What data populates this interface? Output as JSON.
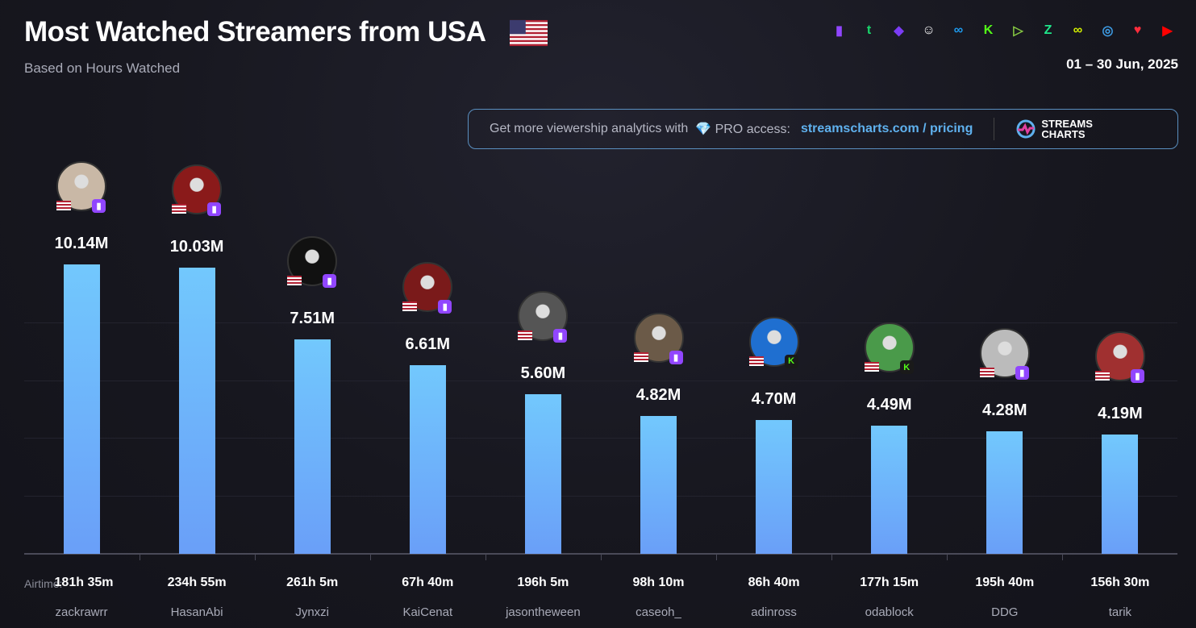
{
  "header": {
    "title": "Most Watched Streamers from USA",
    "subtitle": "Based on Hours Watched",
    "date_range": "01 – 30 Jun, 2025"
  },
  "platforms": [
    {
      "name": "twitch-icon",
      "color": "#9146ff",
      "glyph": "▮"
    },
    {
      "name": "trovo-icon",
      "color": "#19d66b",
      "glyph": "t"
    },
    {
      "name": "vk-play-icon",
      "color": "#7b3cf5",
      "glyph": "◆"
    },
    {
      "name": "bigo-icon",
      "color": "#ffffff",
      "glyph": "☺"
    },
    {
      "name": "infinity-icon",
      "color": "#1e9bf0",
      "glyph": "∞"
    },
    {
      "name": "kick-icon",
      "color": "#53fc18",
      "glyph": "K"
    },
    {
      "name": "rumble-icon",
      "color": "#85c742",
      "glyph": "▷"
    },
    {
      "name": "zhanqi-icon",
      "color": "#1fe58a",
      "glyph": "Z"
    },
    {
      "name": "loop-icon",
      "color": "#d4f000",
      "glyph": "∞"
    },
    {
      "name": "steam-icon",
      "color": "#3d9be3",
      "glyph": "◎"
    },
    {
      "name": "heart-icon",
      "color": "#ff2d3c",
      "glyph": "♥"
    },
    {
      "name": "youtube-icon",
      "color": "#ff0000",
      "glyph": "▶"
    }
  ],
  "promo": {
    "text": "Get more viewership analytics with",
    "pro": "💎 PRO access:",
    "link": "streamscharts.com / pricing",
    "logo_line1": "STREAMS",
    "logo_line2": "CHARTS"
  },
  "airtime_label": "Airtime:",
  "colors": {
    "bar_top": "#72c8fd",
    "bar_bottom": "#6a9ff8",
    "twitch": "#9146ff",
    "kick": "#53fc18"
  },
  "chart_data": {
    "type": "bar",
    "title": "Most Watched Streamers from USA",
    "ylabel": "Hours Watched",
    "ylim": [
      0,
      10.5
    ],
    "categories": [
      "zackrawrr",
      "HasanAbi",
      "Jynxzi",
      "KaiCenat",
      "jasontheween",
      "caseoh_",
      "adinross",
      "odablock",
      "DDG",
      "tarik"
    ],
    "values": [
      10.14,
      10.03,
      7.51,
      6.61,
      5.6,
      4.82,
      4.7,
      4.49,
      4.28,
      4.19
    ],
    "value_labels": [
      "10.14M",
      "10.03M",
      "7.51M",
      "6.61M",
      "5.60M",
      "4.82M",
      "4.70M",
      "4.49M",
      "4.28M",
      "4.19M"
    ],
    "airtime": [
      "181h 35m",
      "234h 55m",
      "261h 5m",
      "67h 40m",
      "196h 5m",
      "98h 10m",
      "86h 40m",
      "177h 15m",
      "195h 40m",
      "156h 30m"
    ],
    "platform": [
      "twitch",
      "twitch",
      "twitch",
      "twitch",
      "twitch",
      "twitch",
      "kick",
      "kick",
      "twitch",
      "twitch"
    ],
    "avatar_colors": [
      "#c9b8a6",
      "#8a1a1a",
      "#111111",
      "#7a1a1a",
      "#555555",
      "#6b5a48",
      "#1f6fd0",
      "#4a9a4a",
      "#bbbbbb",
      "#a03030"
    ]
  }
}
